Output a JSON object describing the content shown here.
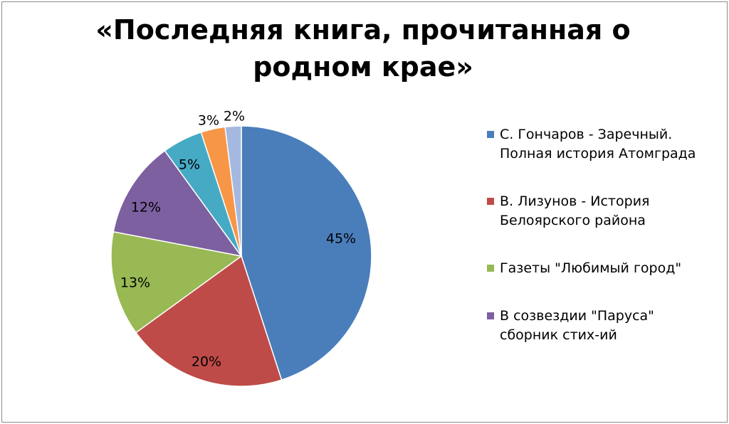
{
  "chart_data": {
    "type": "pie",
    "title": "«Последняя книга, прочитанная о родном крае»",
    "slices": [
      {
        "name": "С. Гончаров - Заречный. Полная история Атомграда",
        "value": 45,
        "label": "45%",
        "color": "#4a7ebb"
      },
      {
        "name": "В. Лизунов - История Белоярского района",
        "value": 20,
        "label": "20%",
        "color": "#be4b48"
      },
      {
        "name": "Газеты \"Любимый город\"",
        "value": 13,
        "label": "13%",
        "color": "#98b954"
      },
      {
        "name": "В созвездии \"Паруса\" сборник стих-ий",
        "value": 12,
        "label": "12%",
        "color": "#7d60a0"
      },
      {
        "name": "",
        "value": 5,
        "label": "5%",
        "color": "#46aac5"
      },
      {
        "name": "",
        "value": 3,
        "label": "3%",
        "color": "#f79646"
      },
      {
        "name": "",
        "value": 2,
        "label": "2%",
        "color": "#a5b8df"
      }
    ],
    "legend": {
      "position": "right",
      "items": [
        {
          "lines": [
            "С. Гончаров - Заречный.",
            "Полная история Атомграда"
          ],
          "color": "#4a7ebb"
        },
        {
          "lines": [
            "В. Лизунов - История",
            "Белоярского района"
          ],
          "color": "#be4b48"
        },
        {
          "lines": [
            "Газеты \"Любимый город\""
          ],
          "color": "#98b954"
        },
        {
          "lines": [
            "В созвездии \"Паруса\"",
            "сборник стих-ий"
          ],
          "color": "#7d60a0"
        }
      ]
    }
  }
}
